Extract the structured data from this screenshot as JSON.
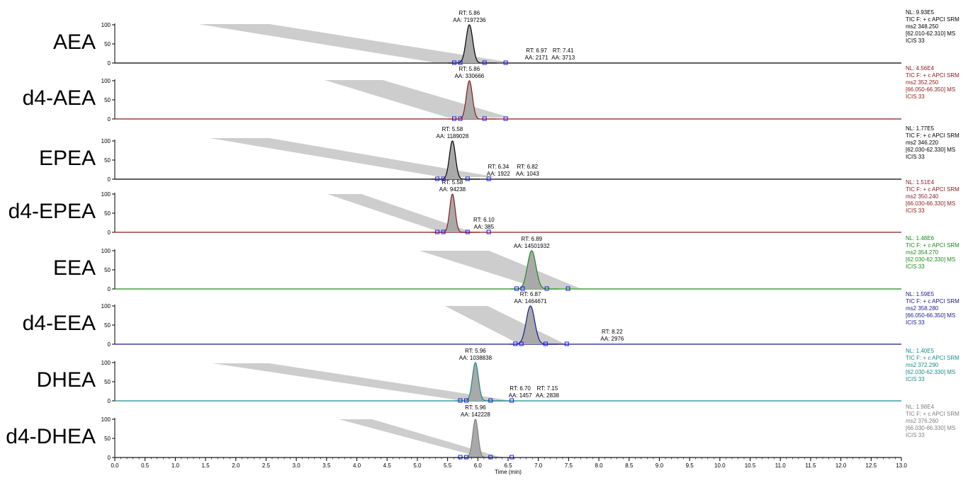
{
  "chart_data": {
    "type": "line",
    "xlabel": "Time (min)",
    "xlim": [
      0.0,
      13.0
    ],
    "x_ticks": [
      "0.0",
      "0.5",
      "1.0",
      "1.5",
      "2.0",
      "2.5",
      "3.0",
      "3.5",
      "4.0",
      "4.5",
      "5.0",
      "5.5",
      "6.0",
      "6.5",
      "7.0",
      "7.5",
      "8.0",
      "8.5",
      "9.0",
      "9.5",
      "10.0",
      "10.5",
      "11.0",
      "11.5",
      "12.0",
      "12.5",
      "13.0"
    ],
    "y_ticks": [
      "0",
      "50",
      "100"
    ],
    "ylim": [
      0,
      100
    ],
    "panels": [
      {
        "name": "AEA",
        "color": "#000000",
        "fill": "#a9a9a9",
        "peak": {
          "rt": 5.86,
          "width": 0.055,
          "height": 100
        },
        "labels": [
          {
            "rt": "RT: 5.86",
            "aa": "AA: 7197236"
          },
          {
            "rt": "RT: 6.97",
            "aa": "AA: 2171"
          },
          {
            "rt": "RT: 7.41",
            "aa": "AA: 3713"
          }
        ],
        "info": [
          "NL: 9.93E5",
          "TIC F: + c APCI SRM",
          "ms2 348.250",
          "[62.010-62.310] MS",
          " ICIS 33"
        ]
      },
      {
        "name": "d4-AEA",
        "color": "#8b1a1a",
        "fill": "#a9a9a9",
        "peak": {
          "rt": 5.86,
          "width": 0.05,
          "height": 100
        },
        "labels": [
          {
            "rt": "RT: 5.86",
            "aa": "AA: 330666"
          }
        ],
        "info": [
          "NL: 4.56E4",
          "TIC F: + c APCI SRM",
          "ms2 352.250",
          "[66.050-66.350] MS",
          " ICIS 33"
        ]
      },
      {
        "name": "EPEA",
        "color": "#000000",
        "fill": "#a9a9a9",
        "peak": {
          "rt": 5.58,
          "width": 0.05,
          "height": 100
        },
        "labels": [
          {
            "rt": "RT: 5.58",
            "aa": "AA: 1189028"
          },
          {
            "rt": "RT: 6.34",
            "aa": "AA: 1922"
          },
          {
            "rt": "RT: 6.82",
            "aa": "AA: 1043"
          }
        ],
        "info": [
          "NL: 1.77E5",
          "TIC F: + c APCI SRM",
          "ms2 346.220",
          "[62.030-62.330] MS",
          "ICIS 33"
        ]
      },
      {
        "name": "d4-EPEA",
        "color": "#8b1a1a",
        "fill": "#a9a9a9",
        "peak": {
          "rt": 5.58,
          "width": 0.045,
          "height": 100
        },
        "labels": [
          {
            "rt": "RT: 5.58",
            "aa": "AA: 94238"
          },
          {
            "rt": "RT: 6.10",
            "aa": "AA: 385"
          }
        ],
        "info": [
          "NL: 1.51E4",
          "TIC F: + c APCI SRM",
          "ms2 350.240",
          "[66.030-66.330] MS",
          "ICIS 33"
        ]
      },
      {
        "name": "EEA",
        "color": "#1a8a1a",
        "fill": "#a9a9a9",
        "peak": {
          "rt": 6.89,
          "width": 0.07,
          "height": 100
        },
        "labels": [
          {
            "rt": "RT: 6.89",
            "aa": "AA: 14501932"
          }
        ],
        "info": [
          "NL: 1.48E6",
          "TIC F: + c APCI SRM",
          "ms2 354.270",
          "[62.030-62.330] MS",
          "ICIS 33"
        ]
      },
      {
        "name": "d4-EEA",
        "color": "#1a1a8b",
        "fill": "#a9a9a9",
        "peak": {
          "rt": 6.87,
          "width": 0.07,
          "height": 100
        },
        "labels": [
          {
            "rt": "RT: 6.87",
            "aa": "AA: 1464671"
          },
          {
            "rt": "RT: 8.22",
            "aa": "AA: 2976"
          }
        ],
        "info": [
          "NL: 1.59E5",
          "TIC F: + c APCI SRM",
          "ms2 358.280",
          "[66.050-66.350] MS",
          "ICIS 33"
        ]
      },
      {
        "name": "DHEA",
        "color": "#1a8a8a",
        "fill": "#a9a9a9",
        "peak": {
          "rt": 5.96,
          "width": 0.05,
          "height": 100
        },
        "labels": [
          {
            "rt": "RT: 5.96",
            "aa": "AA: 1038838"
          },
          {
            "rt": "RT: 6.70",
            "aa": "AA: 1457"
          },
          {
            "rt": "RT: 7.15",
            "aa": "AA: 2838"
          }
        ],
        "info": [
          "NL: 1.40E5",
          "TIC F: + c APCI SRM",
          "ms2 372.290",
          "[62.030-62.330] MS",
          " ICIS 33"
        ]
      },
      {
        "name": "d4-DHEA",
        "color": "#808080",
        "fill": "#a9a9a9",
        "peak": {
          "rt": 5.96,
          "width": 0.045,
          "height": 100
        },
        "labels": [
          {
            "rt": "RT: 5.96",
            "aa": "AA: 142228"
          }
        ],
        "info": [
          "NL: 1.98E4",
          "TIC F: + c APCI SRM",
          "ms2 376.260",
          "[66.030-66.330] MS",
          " ICIS 33"
        ]
      }
    ]
  }
}
